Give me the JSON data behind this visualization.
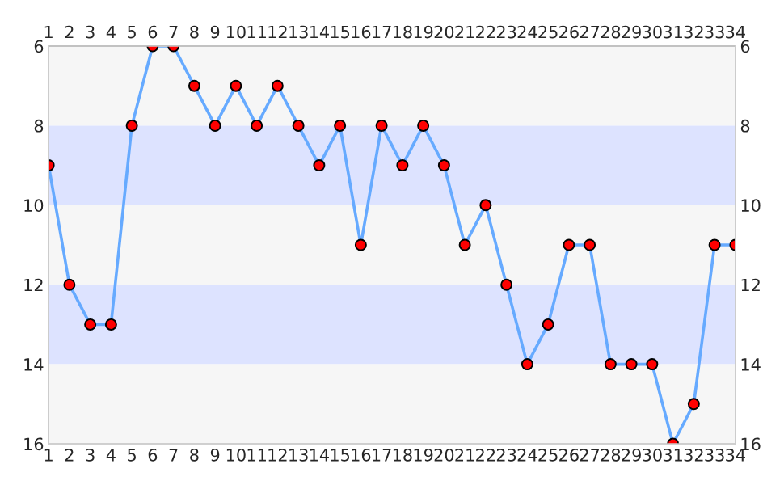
{
  "chart_data": {
    "type": "line",
    "categories": [
      "1",
      "2",
      "3",
      "4",
      "5",
      "6",
      "7",
      "8",
      "9",
      "10",
      "11",
      "12",
      "13",
      "14",
      "15",
      "16",
      "17",
      "18",
      "19",
      "20",
      "21",
      "22",
      "23",
      "24",
      "25",
      "26",
      "27",
      "28",
      "29",
      "30",
      "31",
      "32",
      "33",
      "34"
    ],
    "series": [
      {
        "color": "#66aaff",
        "values": [
          9,
          12,
          13,
          13,
          8,
          6,
          6,
          7,
          8,
          7,
          8,
          7,
          8,
          9,
          8,
          11,
          8,
          9,
          8,
          9,
          11,
          10,
          12,
          14,
          13,
          11,
          11,
          14,
          14,
          14,
          16,
          15,
          11,
          11
        ]
      }
    ],
    "marker": "circle",
    "line_style": "solid",
    "grid": false,
    "legend": false,
    "ylim": [
      16,
      6
    ],
    "yticks": [
      6,
      8,
      10,
      12,
      14,
      16
    ],
    "y2lim": [
      16,
      6
    ],
    "y2ticks": [
      6,
      8,
      10,
      12,
      14,
      16
    ],
    "bands": [
      {
        "axis": "y",
        "from": 6,
        "to": 8,
        "color": "#f6f6f6"
      },
      {
        "axis": "y",
        "from": 8,
        "to": 10,
        "color": "#dde3ff"
      },
      {
        "axis": "y",
        "from": 10,
        "to": 12,
        "color": "#f6f6f6"
      },
      {
        "axis": "y",
        "from": 12,
        "to": 14,
        "color": "#dde3ff"
      },
      {
        "axis": "y",
        "from": 14,
        "to": 16,
        "color": "#f6f6f6"
      }
    ]
  }
}
